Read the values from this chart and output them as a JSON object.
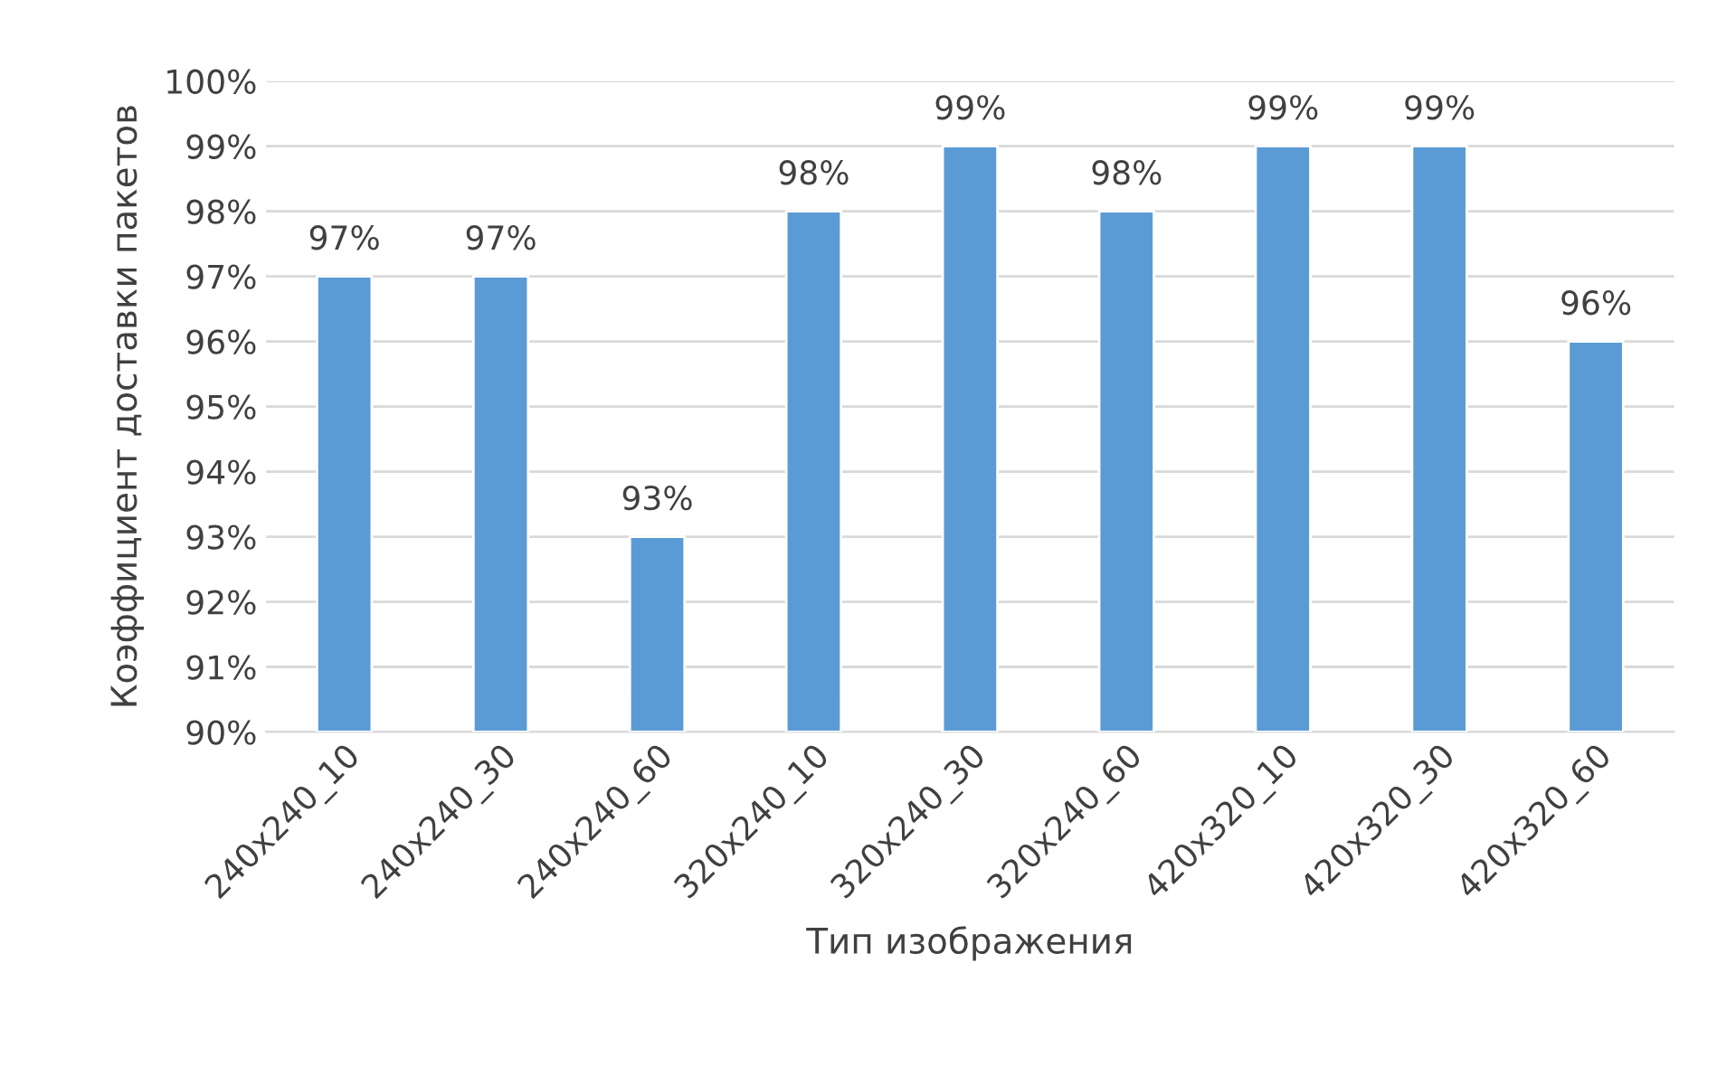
{
  "chart_data": {
    "type": "bar",
    "xlabel": "Тип изображения",
    "ylabel": "Коэффициент доставки пакетов",
    "categories": [
      "240x240_10",
      "240x240_30",
      "240x240_60",
      "320x240_10",
      "320x240_30",
      "320x240_60",
      "420x320_10",
      "420x320_30",
      "420x320_60"
    ],
    "values": [
      97,
      97,
      93,
      98,
      99,
      98,
      99,
      99,
      96
    ],
    "value_labels": [
      "97%",
      "97%",
      "93%",
      "98%",
      "99%",
      "98%",
      "99%",
      "99%",
      "96%"
    ],
    "color": "#5b9bd5",
    "ylim": [
      90,
      100
    ],
    "yticks": [
      {
        "value": 90,
        "label": "90%"
      },
      {
        "value": 91,
        "label": "91%"
      },
      {
        "value": 92,
        "label": "92%"
      },
      {
        "value": 93,
        "label": "93%"
      },
      {
        "value": 94,
        "label": "94%"
      },
      {
        "value": 95,
        "label": "95%"
      },
      {
        "value": 96,
        "label": "96%"
      },
      {
        "value": 97,
        "label": "97%"
      },
      {
        "value": 98,
        "label": "98%"
      },
      {
        "value": 99,
        "label": "99%"
      },
      {
        "value": 100,
        "label": "100%"
      }
    ],
    "grid": "y"
  }
}
